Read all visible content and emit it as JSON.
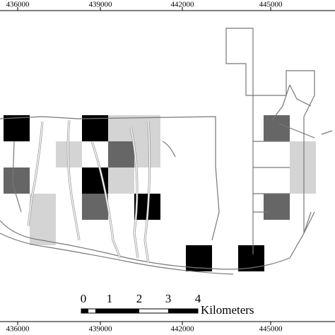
{
  "map": {
    "top_coordinates": [
      436000,
      439000,
      442000,
      445000
    ],
    "bottom_coordinates": [
      436000,
      439000,
      442000,
      445000
    ],
    "scale_bar": {
      "labels": [
        "0",
        "1",
        "2",
        "3",
        "4"
      ],
      "unit": "Kilometers"
    }
  }
}
